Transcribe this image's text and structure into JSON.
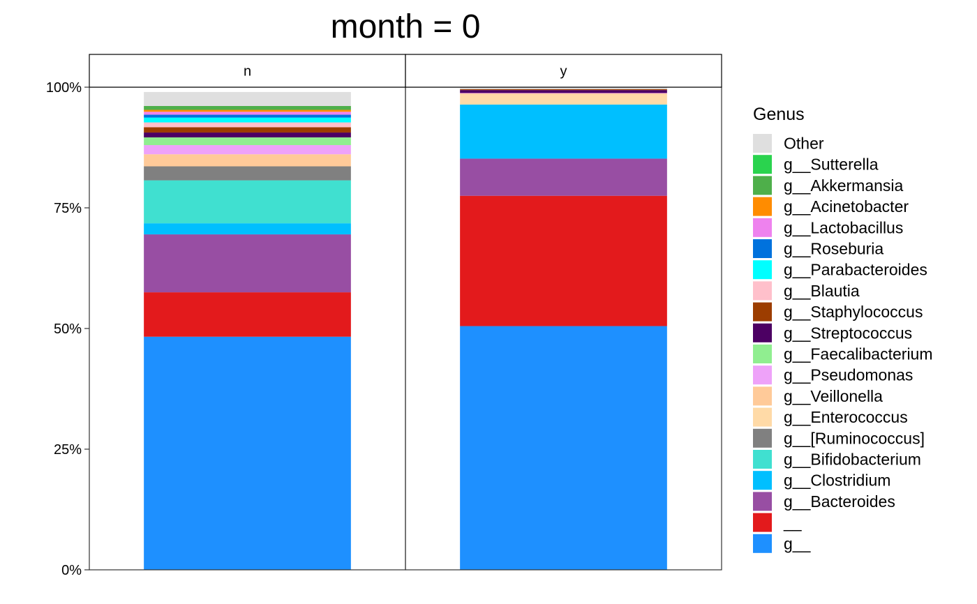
{
  "chart_data": {
    "type": "bar",
    "stacked": true,
    "percent": true,
    "title": "month = 0",
    "xlabel": "",
    "ylabel": "",
    "ylim": [
      0,
      1
    ],
    "y_ticks": [
      0,
      0.25,
      0.5,
      0.75,
      1.0
    ],
    "y_tick_labels": [
      "0%",
      "25%",
      "50%",
      "75%",
      "100%"
    ],
    "grid": false,
    "legend_position": "right",
    "legend_title": "Genus",
    "facets": [
      "n",
      "y"
    ],
    "series": [
      {
        "name": "g__",
        "color": "#1E90FF",
        "values": [
          0.483,
          0.505
        ]
      },
      {
        "name": "__",
        "color": "#E31A1C",
        "values": [
          0.092,
          0.27
        ]
      },
      {
        "name": "g__Bacteroides",
        "color": "#984EA3",
        "values": [
          0.12,
          0.077
        ]
      },
      {
        "name": "g__Clostridium",
        "color": "#00BFFF",
        "values": [
          0.023,
          0.112
        ]
      },
      {
        "name": "g__Bifidobacterium",
        "color": "#40E0D0",
        "values": [
          0.089,
          0.0
        ]
      },
      {
        "name": "g__[Ruminococcus]",
        "color": "#808080",
        "values": [
          0.029,
          0.0
        ]
      },
      {
        "name": "g__Enterococcus",
        "color": "#FFDAA7",
        "values": [
          0.0,
          0.021
        ]
      },
      {
        "name": "g__Veillonella",
        "color": "#FFCA99",
        "values": [
          0.025,
          0.002
        ]
      },
      {
        "name": "g__Pseudomonas",
        "color": "#EEA2F9",
        "values": [
          0.019,
          0.001
        ]
      },
      {
        "name": "g__Faecalibacterium",
        "color": "#90EE90",
        "values": [
          0.016,
          0.0
        ]
      },
      {
        "name": "g__Streptococcus",
        "color": "#4C0063",
        "values": [
          0.01,
          0.006
        ]
      },
      {
        "name": "g__Staphylococcus",
        "color": "#9C3D00",
        "values": [
          0.011,
          0.002
        ]
      },
      {
        "name": "g__Blautia",
        "color": "#FFC0CB",
        "values": [
          0.01,
          0.0
        ]
      },
      {
        "name": "g__Parabacteroides",
        "color": "#00FFFF",
        "values": [
          0.01,
          0.0
        ]
      },
      {
        "name": "g__Roseburia",
        "color": "#0072DD",
        "values": [
          0.006,
          0.0
        ]
      },
      {
        "name": "g__Lactobacillus",
        "color": "#EE82EE",
        "values": [
          0.006,
          0.0
        ]
      },
      {
        "name": "g__Acinetobacter",
        "color": "#FF8C00",
        "values": [
          0.004,
          0.0
        ]
      },
      {
        "name": "g__Akkermansia",
        "color": "#4EAF4A",
        "values": [
          0.008,
          0.0
        ]
      },
      {
        "name": "g__Sutterella",
        "color": "#2AD34E",
        "values": [
          0.0,
          0.0
        ]
      },
      {
        "name": "Other",
        "color": "#DFDFDF",
        "values": [
          0.029,
          0.004
        ]
      }
    ]
  }
}
